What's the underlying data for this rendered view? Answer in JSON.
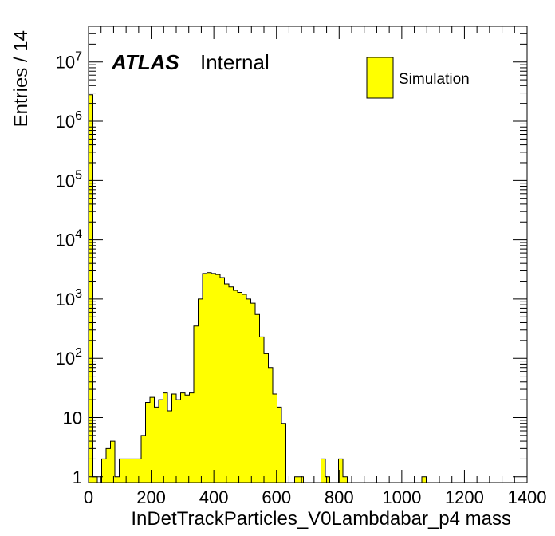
{
  "chart_data": {
    "type": "bar",
    "title": "",
    "xlabel": "InDetTrackParticles_V0Lambdabar_p4 mass",
    "ylabel": "Entries / 14",
    "xlim": [
      0,
      1400
    ],
    "ylim": [
      0.8,
      40000000
    ],
    "y_scale": "log",
    "bin_width": 14,
    "grid": false,
    "x_ticks": [
      "0",
      "200",
      "400",
      "600",
      "800",
      "1000",
      "1200",
      "1400"
    ],
    "y_ticks": [
      {
        "base": "1",
        "exp": ""
      },
      {
        "base": "10",
        "exp": ""
      },
      {
        "base": "10",
        "exp": "2"
      },
      {
        "base": "10",
        "exp": "3"
      },
      {
        "base": "10",
        "exp": "4"
      },
      {
        "base": "10",
        "exp": "5"
      },
      {
        "base": "10",
        "exp": "6"
      },
      {
        "base": "10",
        "exp": "7"
      }
    ],
    "label_atlas": "ATLAS",
    "label_status": "Internal",
    "legend_position": "top-right",
    "series": [
      {
        "name": "Simulation",
        "color": "#ffff00",
        "edge_color": "#000000",
        "bins": [
          [
            0,
            2800000
          ],
          [
            14,
            1
          ],
          [
            28,
            0
          ],
          [
            42,
            2
          ],
          [
            56,
            3
          ],
          [
            70,
            4
          ],
          [
            84,
            1
          ],
          [
            98,
            2
          ],
          [
            112,
            2
          ],
          [
            126,
            2
          ],
          [
            140,
            2
          ],
          [
            154,
            2
          ],
          [
            168,
            5
          ],
          [
            182,
            18
          ],
          [
            196,
            22
          ],
          [
            210,
            15
          ],
          [
            224,
            20
          ],
          [
            238,
            26
          ],
          [
            252,
            13
          ],
          [
            266,
            25
          ],
          [
            280,
            20
          ],
          [
            294,
            26
          ],
          [
            308,
            24
          ],
          [
            322,
            26
          ],
          [
            336,
            350
          ],
          [
            350,
            1000
          ],
          [
            364,
            2700
          ],
          [
            378,
            2800
          ],
          [
            392,
            2700
          ],
          [
            406,
            2600
          ],
          [
            420,
            2300
          ],
          [
            434,
            1800
          ],
          [
            448,
            1600
          ],
          [
            462,
            1400
          ],
          [
            476,
            1300
          ],
          [
            490,
            1200
          ],
          [
            504,
            1000
          ],
          [
            518,
            850
          ],
          [
            532,
            550
          ],
          [
            546,
            230
          ],
          [
            560,
            120
          ],
          [
            574,
            70
          ],
          [
            588,
            25
          ],
          [
            602,
            15
          ],
          [
            616,
            8
          ],
          [
            630,
            0
          ],
          [
            644,
            0
          ],
          [
            658,
            1
          ],
          [
            672,
            1
          ],
          [
            686,
            0
          ],
          [
            700,
            0
          ],
          [
            714,
            0
          ],
          [
            728,
            0
          ],
          [
            742,
            2
          ],
          [
            756,
            1
          ],
          [
            770,
            0
          ],
          [
            784,
            0
          ],
          [
            798,
            2
          ],
          [
            812,
            1
          ],
          [
            826,
            0
          ],
          [
            1064,
            1
          ]
        ]
      }
    ]
  }
}
